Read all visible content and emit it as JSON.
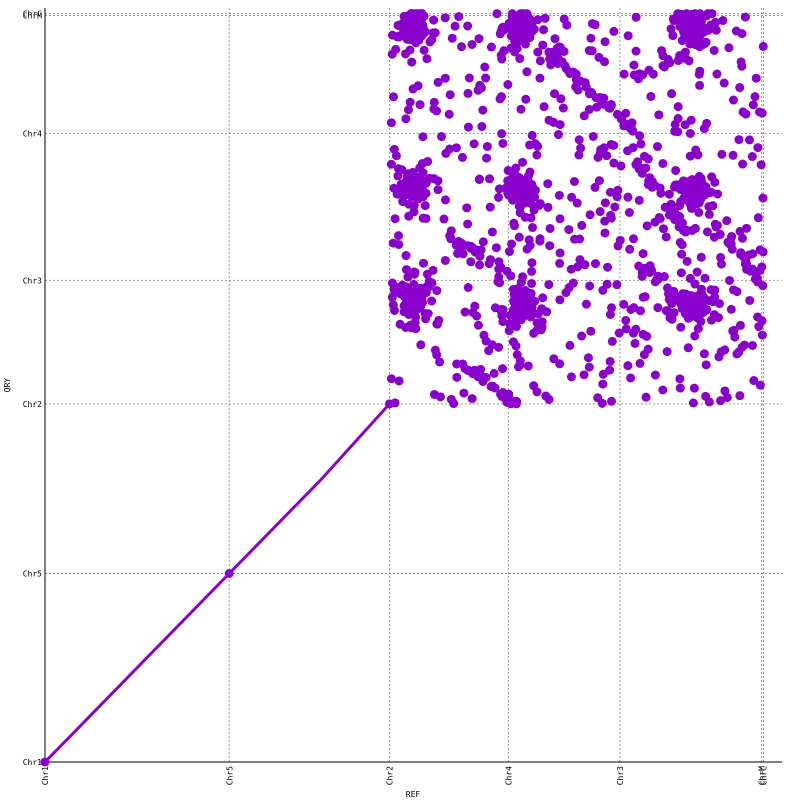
{
  "chart_data": {
    "type": "scatter",
    "title": "",
    "xlabel": "REF",
    "ylabel": "QRY",
    "grid": true,
    "legend": "none",
    "color": "#8a00cc",
    "xlim": [
      0,
      800
    ],
    "ylim": [
      0,
      800
    ],
    "x_ticks": [
      {
        "label": "Chr1",
        "value": 0
      },
      {
        "label": "Chr5",
        "value": 200
      },
      {
        "label": "Chr2",
        "value": 374
      },
      {
        "label": "Chr4",
        "value": 503
      },
      {
        "label": "Chr3",
        "value": 624
      },
      {
        "label": "ChrM",
        "value": 778
      },
      {
        "label": "ChrC",
        "value": 780
      }
    ],
    "y_ticks": [
      {
        "label": "Chr1",
        "value": 0
      },
      {
        "label": "Chr5",
        "value": 200
      },
      {
        "label": "Chr2",
        "value": 380
      },
      {
        "label": "Chr3",
        "value": 511
      },
      {
        "label": "Chr4",
        "value": 667
      },
      {
        "label": "ChrM",
        "value": 792
      },
      {
        "label": "ChrC",
        "value": 794
      }
    ],
    "series": [
      {
        "kind": "diagonal",
        "x": [
          0,
          100,
          200,
          300,
          374
        ],
        "y": [
          0,
          100,
          200,
          300,
          380
        ]
      },
      {
        "kind": "block-scatter",
        "x_range": [
          374,
          780
        ],
        "y_range": [
          380,
          794
        ]
      }
    ]
  }
}
